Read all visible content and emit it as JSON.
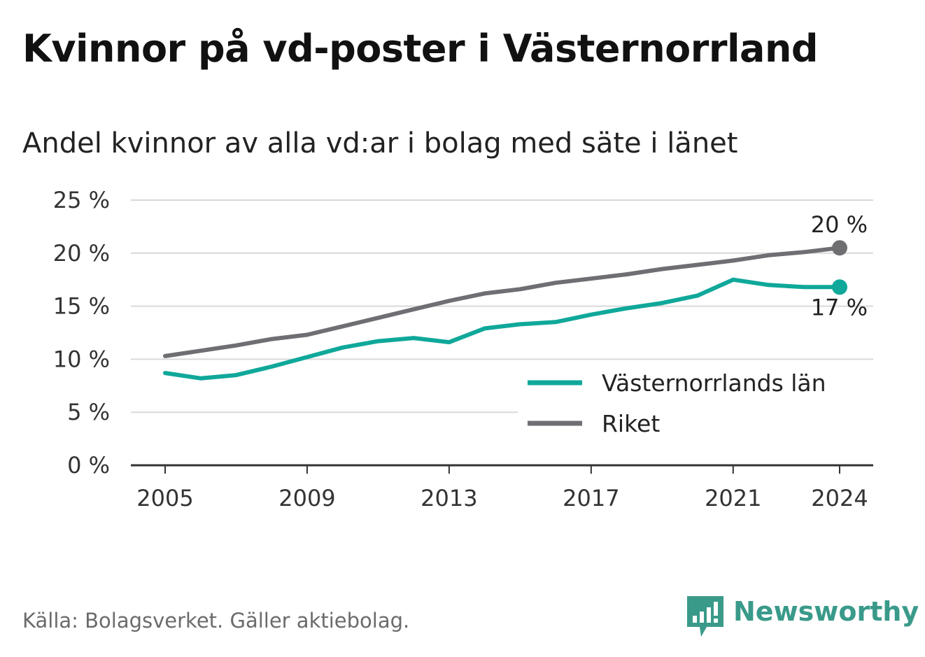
{
  "title": "Kvinnor på vd-poster i Västernorrland",
  "subtitle": "Andel kvinnor av alla vd:ar i bolag med säte i länet",
  "source": "Källa: Bolagsverket. Gäller aktiebolag.",
  "logo": {
    "text": "Newsworthy",
    "icon": "newsworthy-logo-icon",
    "color": "#3a9a8a"
  },
  "chart_data": {
    "type": "line",
    "x": [
      2005,
      2006,
      2007,
      2008,
      2009,
      2010,
      2011,
      2012,
      2013,
      2014,
      2015,
      2016,
      2017,
      2018,
      2019,
      2020,
      2021,
      2022,
      2023,
      2024
    ],
    "series": [
      {
        "name": "Västernorrlands län",
        "color": "#0fa89a",
        "values": [
          8.7,
          8.2,
          8.5,
          9.3,
          10.2,
          11.1,
          11.7,
          12.0,
          11.6,
          12.9,
          13.3,
          13.5,
          14.2,
          14.8,
          15.3,
          16.0,
          17.5,
          17.0,
          16.8,
          16.8
        ],
        "end_label": "17 %"
      },
      {
        "name": "Riket",
        "color": "#6e6e73",
        "values": [
          10.3,
          10.8,
          11.3,
          11.9,
          12.3,
          13.1,
          13.9,
          14.7,
          15.5,
          16.2,
          16.6,
          17.2,
          17.6,
          18.0,
          18.5,
          18.9,
          19.3,
          19.8,
          20.1,
          20.5
        ],
        "end_label": "20 %"
      }
    ],
    "xticks": [
      2005,
      2009,
      2013,
      2017,
      2021,
      2024
    ],
    "yticks": [
      "0 %",
      "5 %",
      "10 %",
      "15 %",
      "20 %",
      "25 %"
    ],
    "ylim": [
      0,
      25
    ],
    "grid": true,
    "legend_position": "right"
  }
}
